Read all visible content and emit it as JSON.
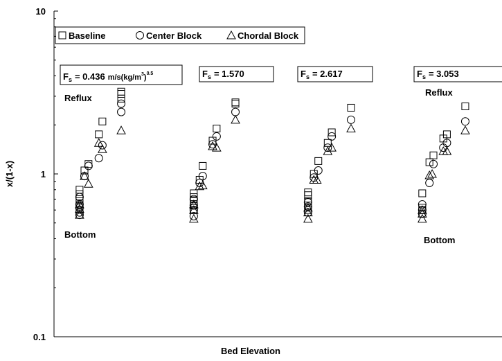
{
  "chart_data": {
    "type": "scatter",
    "y_label": "x/(1-x)",
    "x_label": "Bed Elevation",
    "xlim": [
      0,
      100
    ],
    "ylim": [
      0.1,
      10
    ],
    "yticks": [
      0.1,
      1,
      10
    ],
    "log_y": true,
    "series": [
      {
        "name": "Baseline",
        "marker": "square",
        "color": "#000000",
        "x": [
          5.7,
          5.7,
          5.7,
          5.7,
          5.7,
          5.7,
          6.8,
          7.7,
          10.0,
          10.8,
          15.0,
          15.0,
          15.0,
          31.2,
          31.2,
          31.2,
          31.2,
          31.2,
          32.5,
          33.2,
          35.4,
          36.3,
          40.5,
          40.5,
          56.7,
          56.7,
          56.7,
          56.7,
          56.7,
          58.0,
          59.0,
          61.1,
          62.0,
          66.3,
          82.2,
          82.2,
          82.2,
          83.8,
          84.7,
          86.9,
          87.7,
          91.8
        ],
        "values": [
          0.8,
          0.75,
          0.7,
          0.66,
          0.63,
          0.6,
          1.05,
          1.15,
          1.75,
          2.1,
          2.9,
          3.1,
          3.2,
          0.76,
          0.72,
          0.68,
          0.64,
          0.6,
          0.92,
          1.12,
          1.6,
          1.9,
          2.7,
          2.75,
          0.77,
          0.74,
          0.68,
          0.64,
          0.6,
          1.0,
          1.2,
          1.55,
          1.8,
          2.55,
          0.76,
          0.62,
          0.6,
          1.18,
          1.3,
          1.65,
          1.75,
          2.6
        ]
      },
      {
        "name": "Center Block",
        "marker": "circle",
        "color": "#000000",
        "x": [
          5.7,
          5.7,
          5.7,
          5.7,
          5.7,
          6.8,
          7.7,
          10.0,
          10.8,
          15.0,
          15.0,
          31.2,
          31.2,
          31.2,
          31.2,
          32.5,
          33.2,
          35.4,
          36.3,
          40.5,
          56.7,
          56.7,
          56.7,
          58.0,
          59.0,
          61.1,
          62.0,
          66.3,
          82.2,
          82.2,
          82.2,
          83.8,
          84.7,
          86.9,
          87.7,
          91.8
        ],
        "values": [
          0.72,
          0.65,
          0.62,
          0.58,
          0.56,
          0.97,
          1.12,
          1.25,
          1.5,
          2.4,
          2.7,
          0.7,
          0.64,
          0.6,
          0.55,
          0.88,
          0.97,
          1.52,
          1.7,
          2.4,
          0.67,
          0.63,
          0.58,
          0.95,
          1.05,
          1.45,
          1.7,
          2.15,
          0.65,
          0.6,
          0.57,
          0.88,
          1.15,
          1.45,
          1.55,
          2.1
        ]
      },
      {
        "name": "Chordal Block",
        "marker": "triangle",
        "color": "#000000",
        "x": [
          5.7,
          5.7,
          5.7,
          6.8,
          7.7,
          10.0,
          10.8,
          15.0,
          31.2,
          31.2,
          31.2,
          32.5,
          33.2,
          35.4,
          36.3,
          40.5,
          56.7,
          56.7,
          56.7,
          58.0,
          58.7,
          61.1,
          62.0,
          66.3,
          82.2,
          82.2,
          82.2,
          83.8,
          84.4,
          86.9,
          87.7,
          91.8
        ],
        "values": [
          0.65,
          0.61,
          0.56,
          0.97,
          0.87,
          1.55,
          1.42,
          1.85,
          0.65,
          0.6,
          0.53,
          0.84,
          0.85,
          1.48,
          1.45,
          2.15,
          0.62,
          0.58,
          0.53,
          0.92,
          0.92,
          1.38,
          1.45,
          1.9,
          0.6,
          0.57,
          0.53,
          0.98,
          1.0,
          1.38,
          1.38,
          1.85
        ]
      }
    ],
    "fs_boxes": [
      {
        "symbol": "F",
        "subscript": "s",
        "text": "= 0.436",
        "unit": "m/s(kg/m",
        "unit_power": "3",
        "unit_close": ")",
        "exponent": "0.5"
      },
      {
        "symbol": "F",
        "subscript": "s",
        "text": "= 1.570"
      },
      {
        "symbol": "F",
        "subscript": "s",
        "text": "= 2.617"
      },
      {
        "symbol": "F",
        "subscript": "s",
        "text": "= 3.053"
      }
    ],
    "annotations": [
      "Reflux",
      "Bottom",
      "Reflux",
      "Bottom"
    ]
  }
}
